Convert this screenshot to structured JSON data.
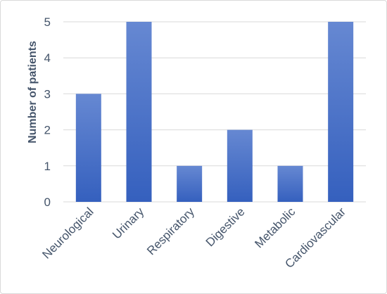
{
  "chart_data": {
    "type": "bar",
    "title": "",
    "xlabel": "",
    "ylabel": "Number of patients",
    "categories": [
      "Neurological",
      "Urinary",
      "Respiratory",
      "Digestive",
      "Metabolic",
      "Cardiovascular"
    ],
    "values": [
      3,
      5,
      1,
      2,
      1,
      5
    ],
    "ylim": [
      0,
      5
    ],
    "yticks": [
      "0",
      "1",
      "2",
      "3",
      "4",
      "5"
    ],
    "grid": true,
    "legend": "none",
    "colors": {
      "bar_top": "#6688d2",
      "bar_bottom": "#3560be",
      "grid": "#d9d9d9",
      "text": "#44546a"
    }
  }
}
